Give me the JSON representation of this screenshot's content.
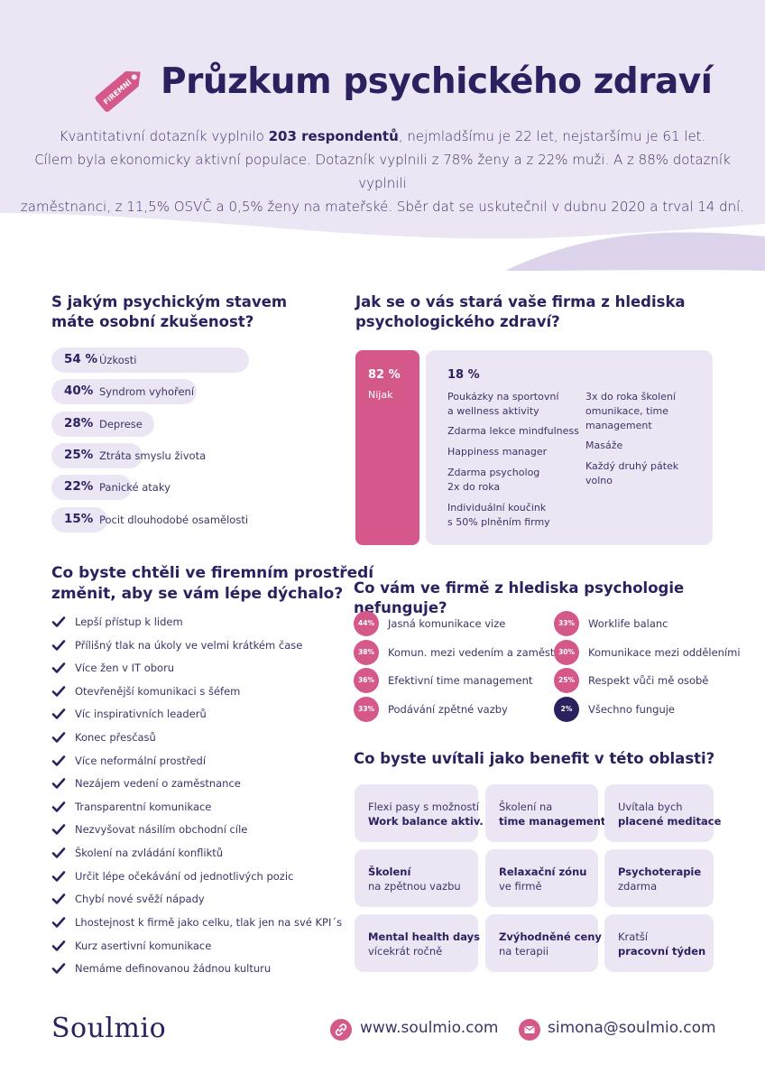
{
  "header": {
    "tag_text": "FIREMNÍ",
    "title": "Průzkum psychického zdraví",
    "intro_before": "Kvantitativní dotazník vyplnilo ",
    "intro_bold": "203 respondentů",
    "intro_line1_after": ", nejmladšímu je 22 let, nejstaršímu je 61 let.",
    "intro_line2": "Cílem byla ekonomicky aktivní populace. Dotazník vyplnili z 78% ženy a z 22% muži. A z 88% dotazník vyplnili",
    "intro_line3": "zaměstnanci, z 11,5% OSVČ a 0,5% ženy na mateřské. Sběr dat se uskutečnil v dubnu 2020 a trval 14 dní."
  },
  "experience": {
    "title_line1": "S jakým psychickým stavem",
    "title_line2": "máte osobní zkušenost?",
    "items": [
      {
        "pct": "54 %",
        "label": "Úzkosti",
        "value": 54
      },
      {
        "pct": "40%",
        "label": "Syndrom vyhoření",
        "value": 40
      },
      {
        "pct": "28%",
        "label": "Deprese",
        "value": 28
      },
      {
        "pct": "25%",
        "label": "Ztráta smyslu života",
        "value": 25
      },
      {
        "pct": "22%",
        "label": "Panické ataky",
        "value": 22
      },
      {
        "pct": "15%",
        "label": "Pocit dlouhodobé osamělosti",
        "value": 15
      }
    ]
  },
  "care": {
    "title_line1": "Jak se o vás stará vaše firma z hlediska",
    "title_line2": "psychologického zdraví?",
    "none_pct": "82 %",
    "none_label": "Nijak",
    "some_pct": "18 %",
    "col1": [
      "Poukázky na sportovní\na wellness aktivity",
      "Zdarma lekce mindfulness",
      "Happiness manager",
      "Zdarma psycholog\n2x do roka",
      "Individuální koučink\ns 50% plněním firmy"
    ],
    "col2": [
      "3x do roka školení\nomunikace, time\nmanagement",
      "Masáže",
      "Každý druhý pátek\nvolno"
    ]
  },
  "wishes": {
    "title_line1": "Co byste chtěli ve firemním prostředí",
    "title_line2": "změnit, aby se vám lépe dýchalo?",
    "items": [
      "Lepší přístup k lidem",
      "Přílišný tlak na úkoly ve velmi krátkém čase",
      "Více žen v IT oboru",
      "Otevřenější komunikaci s šéfem",
      "Víc inspirativních leaderů",
      "Konec přesčasů",
      "Více neformální prostředí",
      "Nezájem vedení o zaměstnance",
      "Transparentní komunikace",
      "Nezvyšovat násilím obchodní cíle",
      "Školení na zvládání konfliktů",
      "Určit lépe očekávání od jednotlivých pozic",
      "Chybí nové svěží nápady",
      "Lhostejnost k firmě jako celku, tlak jen na své KPI´s",
      "Kurz asertivní komunikace",
      "Nemáme definovanou žádnou kulturu"
    ]
  },
  "not_working": {
    "title": "Co vám ve firmě z hlediska psychologie nefunguje?",
    "left": [
      {
        "pct": "44%",
        "label": "Jasná komunikace vize"
      },
      {
        "pct": "38%",
        "label": "Komun. mezi vedením a zaměst."
      },
      {
        "pct": "36%",
        "label": "Efektivní time management"
      },
      {
        "pct": "33%",
        "label": "Podávání zpětné vazby"
      }
    ],
    "right": [
      {
        "pct": "33%",
        "label": "Worklife balanc"
      },
      {
        "pct": "30%",
        "label": "Komunikace mezi odděleními"
      },
      {
        "pct": "25%",
        "label": "Respekt vůči mě osobě"
      },
      {
        "pct": "2%",
        "label": "Všechno funguje"
      }
    ]
  },
  "benefits": {
    "title": "Co byste uvítali jako benefit v této oblasti?",
    "cards": [
      {
        "line1": "Flexi pasy s možností",
        "line2": "Work balance aktiv."
      },
      {
        "line1": "Školení na",
        "line2": "time management"
      },
      {
        "line1": "Uvítala bych",
        "line2": "placené meditace"
      },
      {
        "line1": "Školení",
        "line2": "na zpětnou vazbu"
      },
      {
        "line1": "Relaxační zónu",
        "line2": "ve firmě"
      },
      {
        "line1": "Psychoterapie",
        "line2": "zdarma"
      },
      {
        "line1": "Mental health days",
        "line2": "vícekrát ročně"
      },
      {
        "line1": "Zvýhodněné ceny",
        "line2": "na terapii"
      },
      {
        "line1": "Kratší",
        "line2": "pracovní týden"
      }
    ]
  },
  "footer": {
    "logo": "Soulmio",
    "website": "www.soulmio.com",
    "email": "simona@soulmio.com"
  },
  "colors": {
    "lavender": "#ece6f4",
    "header_bg": "#e9e3f3",
    "pink": "#d4588a",
    "navy": "#2b215e"
  }
}
